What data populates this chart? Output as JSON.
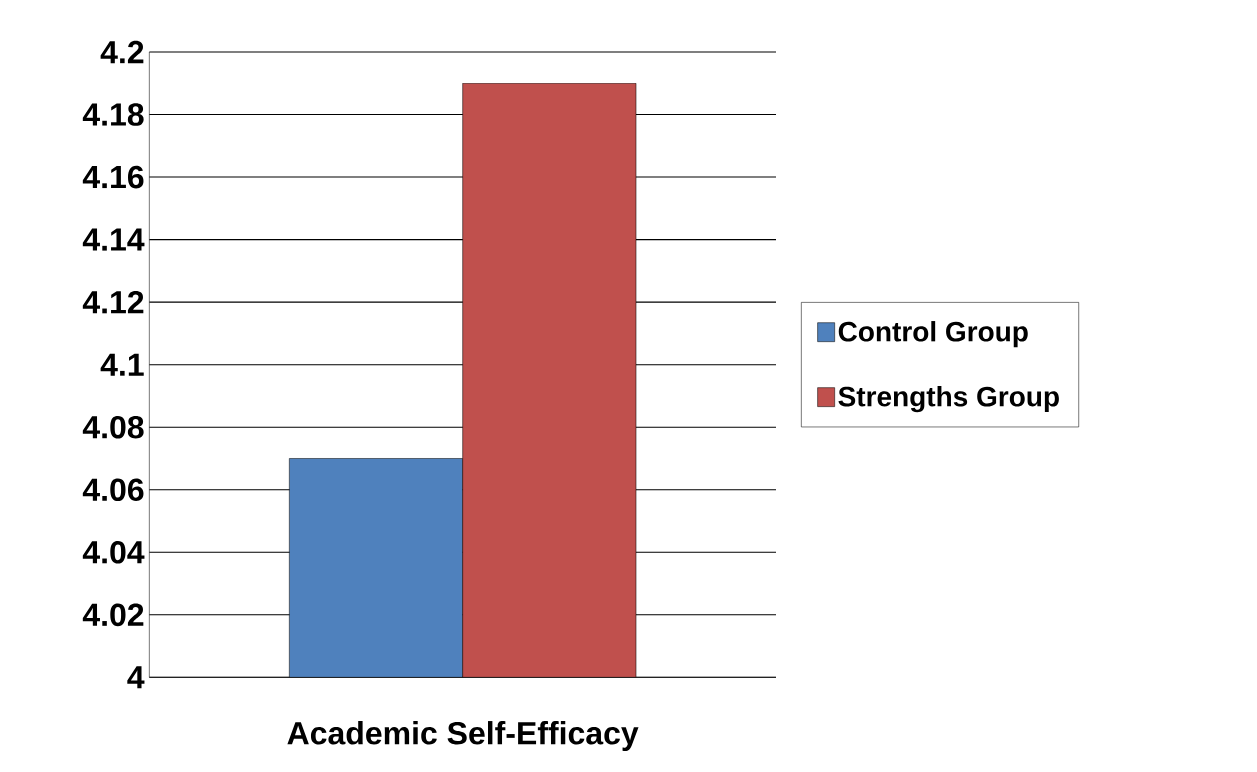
{
  "chart_data": {
    "type": "bar",
    "categories": [
      "Academic Self-Efficacy"
    ],
    "series": [
      {
        "name": "Control Group",
        "color": "#4f81bd",
        "values": [
          4.07
        ]
      },
      {
        "name": "Strengths Group",
        "color": "#c0504d",
        "values": [
          4.19
        ]
      }
    ],
    "ylim": [
      4,
      4.2
    ],
    "yticks": [
      4,
      4.02,
      4.04,
      4.06,
      4.08,
      4.1,
      4.12,
      4.14,
      4.16,
      4.18,
      4.2
    ],
    "grid": "y",
    "legend": "right"
  }
}
